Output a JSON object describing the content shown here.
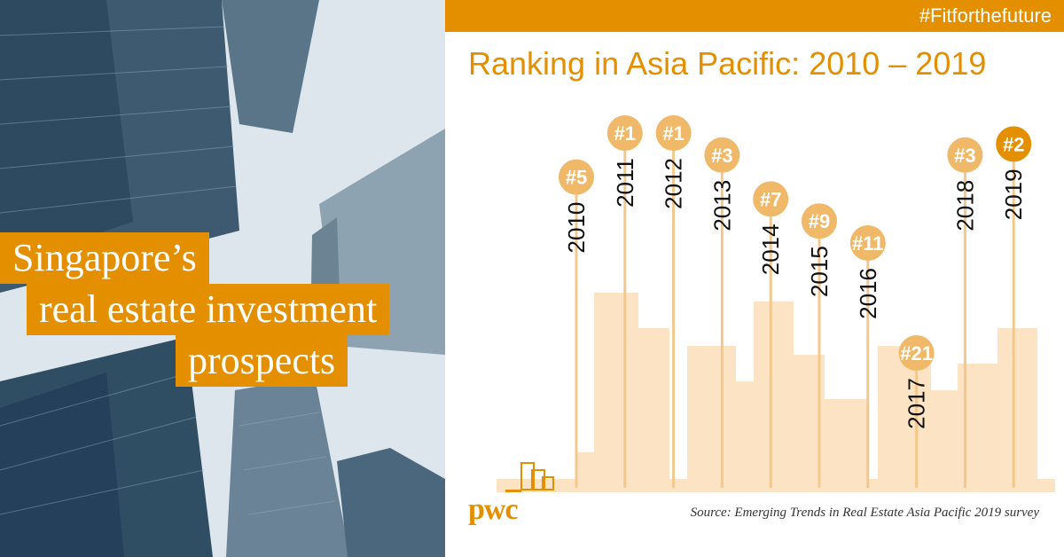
{
  "header": {
    "hashtag": "#Fitforthefuture"
  },
  "headline": {
    "line1": "Singapore’s",
    "line2": "real estate investment",
    "line3": "prospects"
  },
  "colors": {
    "accent": "#e48f00",
    "marker_light": "#f0b96a",
    "marker_highlight": "#e48f00",
    "stem": "#f3c88c",
    "skyline": "#fbe3c4"
  },
  "chart_data": {
    "type": "scatter",
    "title": "Ranking in Asia Pacific: 2010 – 2019",
    "x": [
      "2010",
      "2011",
      "2012",
      "2013",
      "2014",
      "2015",
      "2016",
      "2017",
      "2018",
      "2019"
    ],
    "y": [
      5,
      1,
      1,
      3,
      7,
      9,
      11,
      21,
      3,
      2
    ],
    "labels": [
      "#5",
      "#1",
      "#1",
      "#3",
      "#7",
      "#9",
      "#11",
      "#21",
      "#3",
      "#2"
    ],
    "highlight": "2019"
  },
  "footer": {
    "source": "Source: Emerging Trends in Real Estate Asia Pacific 2019 survey",
    "logo_text": "pwc"
  }
}
